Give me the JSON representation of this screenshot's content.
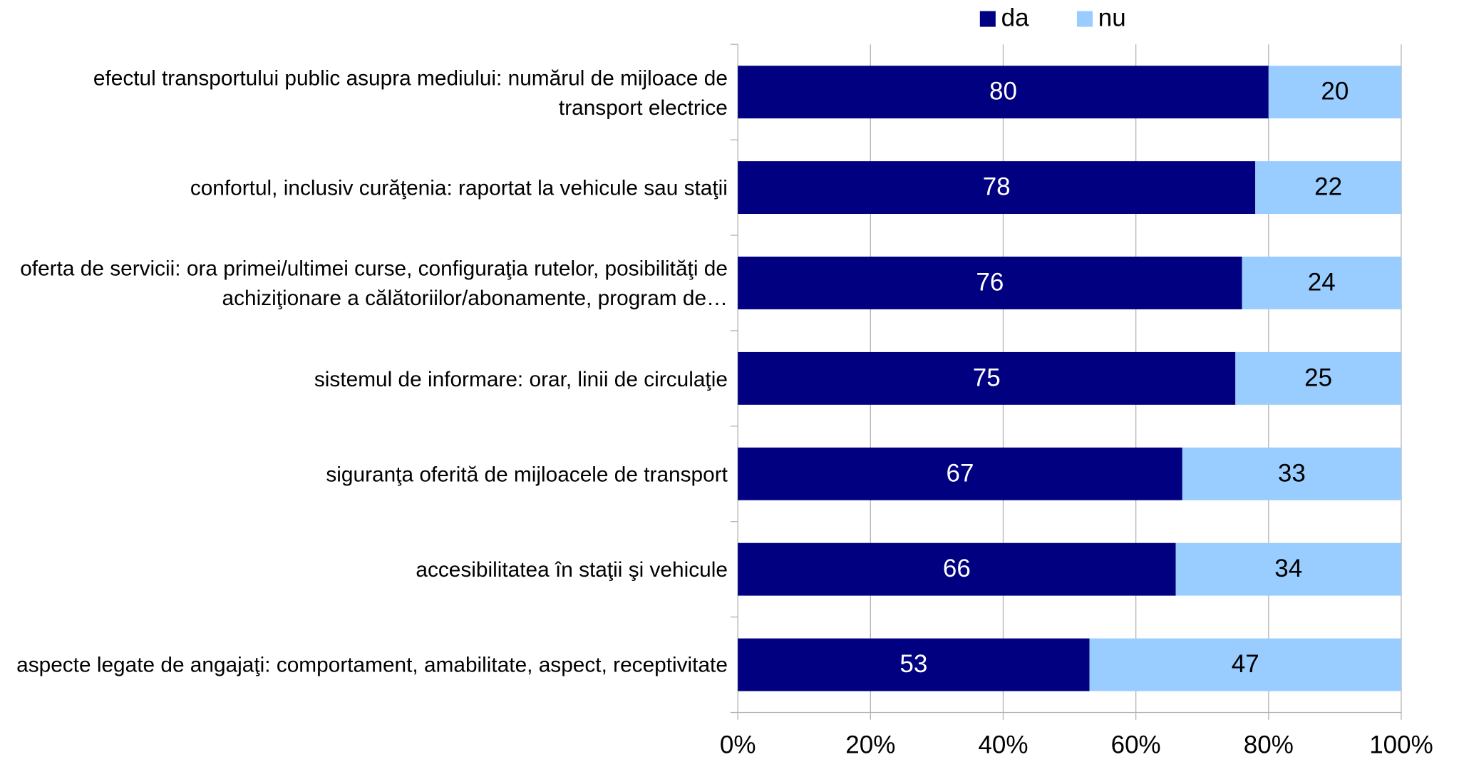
{
  "chart_data": {
    "type": "stacked_barh",
    "categories": [
      "efectul transportului public asupra mediului: numărul de mijloace de transport electrice",
      "confortul, inclusiv curăţenia: raportat la vehicule sau staţii",
      "oferta de servicii: ora primei/ultimei curse, configuraţia rutelor, posibilităţi de achiziţionare a călătoriilor/abonamente, program de…",
      "sistemul de informare: orar, linii de circulaţie",
      "siguranţa oferită de mijloacele de transport",
      "accesibilitatea în staţii şi vehicule",
      "aspecte legate de angajaţi: comportament, amabilitate, aspect, receptivitate"
    ],
    "series": [
      {
        "name": "da",
        "color": "#000080",
        "values": [
          80,
          78,
          76,
          75,
          67,
          66,
          53
        ]
      },
      {
        "name": "nu",
        "color": "#99ccff",
        "values": [
          20,
          22,
          24,
          25,
          33,
          34,
          47
        ]
      }
    ],
    "xlim": [
      0,
      100
    ],
    "xticks": [
      {
        "value": 0,
        "label": "0%"
      },
      {
        "value": 20,
        "label": "20%"
      },
      {
        "value": 40,
        "label": "40%"
      },
      {
        "value": 60,
        "label": "60%"
      },
      {
        "value": 80,
        "label": "80%"
      },
      {
        "value": 100,
        "label": "100%"
      }
    ],
    "grid": true,
    "legend": "top"
  }
}
